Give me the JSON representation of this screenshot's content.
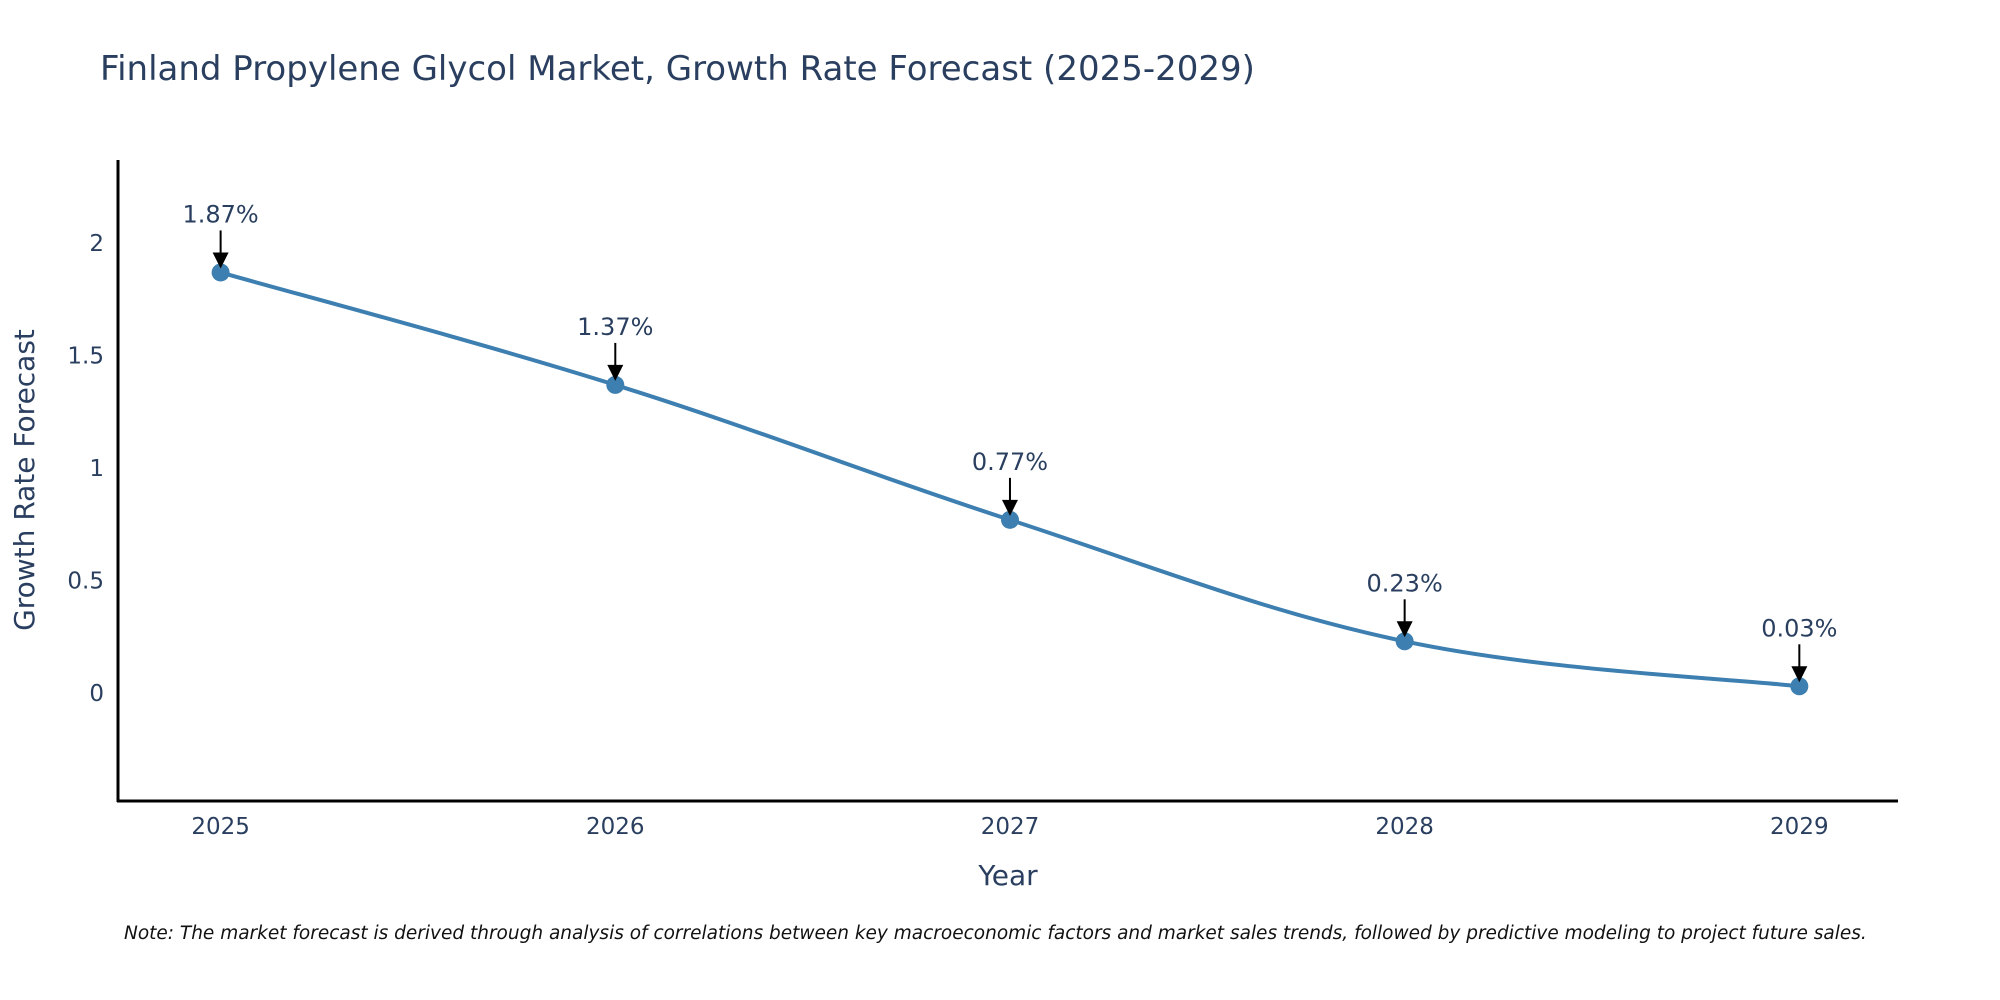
{
  "chart_data": {
    "type": "line",
    "title": "Finland Propylene Glycol Market, Growth Rate Forecast (2025-2029)",
    "xlabel": "Year",
    "ylabel": "Growth Rate Forecast",
    "x": [
      2025,
      2026,
      2027,
      2028,
      2029
    ],
    "series": [
      {
        "name": "Growth Rate Forecast",
        "values": [
          1.87,
          1.37,
          0.77,
          0.23,
          0.03
        ],
        "color": "#3d7fb0",
        "line_shape": "spline",
        "markers": true
      }
    ],
    "annotations": [
      "1.87%",
      "1.37%",
      "0.77%",
      "0.23%",
      "0.03%"
    ],
    "x_ticks": [
      "2025",
      "2026",
      "2027",
      "2028",
      "2029"
    ],
    "y_ticks": [
      0,
      0.5,
      1,
      1.5,
      2
    ],
    "y_tick_labels": [
      "0",
      "0.5",
      "1",
      "1.5",
      "2"
    ],
    "xlim": [
      2024.74,
      2029.25
    ],
    "ylim": [
      -0.48,
      2.37
    ],
    "grid": false,
    "legend": "none",
    "note": "Note: The market forecast is derived through analysis of correlations between key macroeconomic factors and market sales trends, followed by predictive modeling to project future sales."
  }
}
